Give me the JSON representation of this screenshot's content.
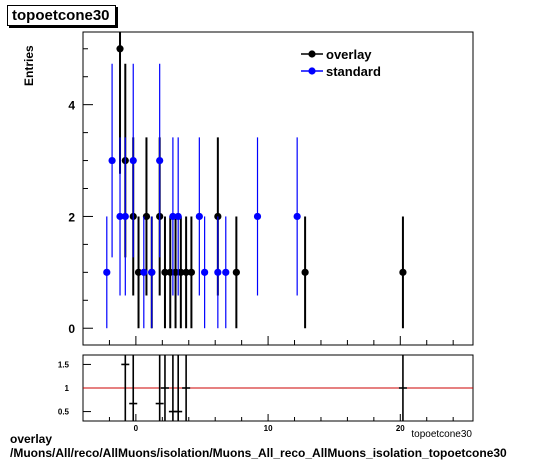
{
  "title": "topoetcone30",
  "footer": {
    "line1": "overlay",
    "line2": "/Muons/All/reco/AllMuons/isolation/Muons_All_reco_AllMuons_isolation_topoetcone30"
  },
  "colors": {
    "overlay": "#000000",
    "standard": "#0000ff",
    "ratio_line": "#cc0000"
  },
  "chart_data": [
    {
      "type": "scatter",
      "ylabel": "Entries",
      "xlabel": "topoetcone30",
      "xlim": [
        -4,
        25.5
      ],
      "ylim": [
        -0.3,
        5.3
      ],
      "yticks": [
        0,
        2,
        4
      ],
      "xticks": [
        0,
        10,
        20
      ],
      "legend": "top-right",
      "series": [
        {
          "name": "overlay",
          "points": [
            {
              "x": -1.2,
              "y": 5
            },
            {
              "x": -0.8,
              "y": 3
            },
            {
              "x": -0.2,
              "y": 2
            },
            {
              "x": 0.2,
              "y": 1
            },
            {
              "x": 0.8,
              "y": 2
            },
            {
              "x": 1.2,
              "y": 1
            },
            {
              "x": 1.8,
              "y": 2
            },
            {
              "x": 2.2,
              "y": 1
            },
            {
              "x": 2.6,
              "y": 1
            },
            {
              "x": 3.0,
              "y": 1
            },
            {
              "x": 3.4,
              "y": 1
            },
            {
              "x": 3.8,
              "y": 1
            },
            {
              "x": 4.2,
              "y": 1
            },
            {
              "x": 6.2,
              "y": 2
            },
            {
              "x": 7.6,
              "y": 1
            },
            {
              "x": 12.8,
              "y": 1
            },
            {
              "x": 20.2,
              "y": 1
            }
          ]
        },
        {
          "name": "standard",
          "points": [
            {
              "x": -2.2,
              "y": 1
            },
            {
              "x": -1.8,
              "y": 3
            },
            {
              "x": -1.2,
              "y": 2
            },
            {
              "x": -0.8,
              "y": 2
            },
            {
              "x": -0.2,
              "y": 3
            },
            {
              "x": 0.6,
              "y": 1
            },
            {
              "x": 1.2,
              "y": 1
            },
            {
              "x": 1.8,
              "y": 3
            },
            {
              "x": 2.8,
              "y": 2
            },
            {
              "x": 3.2,
              "y": 2
            },
            {
              "x": 4.8,
              "y": 2
            },
            {
              "x": 5.2,
              "y": 1
            },
            {
              "x": 6.2,
              "y": 1
            },
            {
              "x": 6.8,
              "y": 1
            },
            {
              "x": 9.2,
              "y": 2
            },
            {
              "x": 12.2,
              "y": 2
            }
          ]
        }
      ]
    },
    {
      "type": "scatter",
      "xlim": [
        -4,
        25.5
      ],
      "ylim": [
        0.3,
        1.7
      ],
      "yticks": [
        0.5,
        1,
        1.5
      ],
      "ytick_labels": [
        "0.5",
        "1",
        "1.5"
      ],
      "xticks": [
        0,
        10,
        20
      ],
      "reference_line": 1,
      "points": [
        {
          "x": -0.8,
          "y": 1.5
        },
        {
          "x": -0.2,
          "y": 0.67
        },
        {
          "x": 1.8,
          "y": 0.67
        },
        {
          "x": 2.2,
          "y": 1.0
        },
        {
          "x": 2.8,
          "y": 0.5
        },
        {
          "x": 3.2,
          "y": 0.5
        },
        {
          "x": 3.8,
          "y": 1.0
        },
        {
          "x": 20.2,
          "y": 1.0
        }
      ]
    }
  ]
}
